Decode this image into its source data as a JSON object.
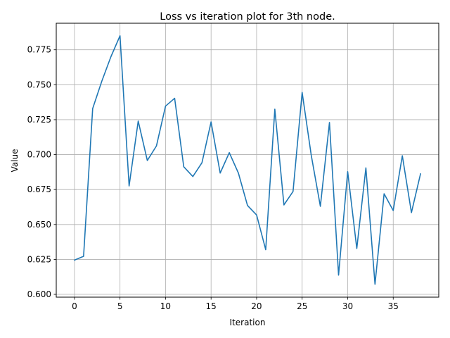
{
  "chart_data": {
    "type": "line",
    "title": "Loss vs iteration plot for 3th node.",
    "xlabel": "Iteration",
    "ylabel": "Value",
    "xlim": [
      -2,
      40
    ],
    "ylim": [
      0.598,
      0.794
    ],
    "xticks": [
      0,
      5,
      10,
      15,
      20,
      25,
      30,
      35
    ],
    "yticks": [
      0.6,
      0.625,
      0.65,
      0.675,
      0.7,
      0.725,
      0.75,
      0.775
    ],
    "grid": true,
    "line_color": "#1f77b4",
    "series": [
      {
        "x": [
          0,
          1,
          2,
          3,
          4,
          5,
          6,
          7,
          8,
          9,
          10,
          11,
          12,
          13,
          14,
          15,
          16,
          17,
          18,
          19,
          20,
          21,
          22,
          23,
          24,
          25,
          26,
          27,
          28,
          29,
          30,
          31,
          32,
          33,
          34,
          35,
          36,
          37,
          38
        ],
        "values": [
          0.6245,
          0.6272,
          0.733,
          0.7525,
          0.77,
          0.785,
          0.6776,
          0.724,
          0.6958,
          0.7062,
          0.7347,
          0.7403,
          0.6913,
          0.6843,
          0.6942,
          0.7234,
          0.6868,
          0.7014,
          0.6868,
          0.6636,
          0.6568,
          0.632,
          0.7325,
          0.664,
          0.6736,
          0.7445,
          0.6995,
          0.663,
          0.723,
          0.6138,
          0.6878,
          0.6328,
          0.6905,
          0.6072,
          0.672,
          0.66,
          0.6992,
          0.6585,
          0.6863
        ]
      }
    ]
  }
}
